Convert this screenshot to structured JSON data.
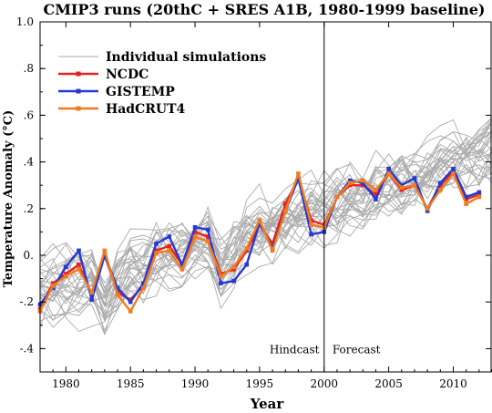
{
  "chart_data": {
    "type": "line",
    "title": "CMIP3 runs (20thC + SRES A1B, 1980-1999 baseline)",
    "xlabel": "Year",
    "ylabel": "Temperature Anomaly (°C)",
    "xlim": [
      1978,
      2013
    ],
    "ylim": [
      -0.5,
      1.0
    ],
    "x_ticks": [
      "1980",
      "1985",
      "1990",
      "1995",
      "2000",
      "2005",
      "2010"
    ],
    "x_tick_values": [
      1980,
      1985,
      1990,
      1995,
      2000,
      2005,
      2010
    ],
    "y_ticks": [
      "-.4",
      "-.2",
      "0.",
      ".2",
      ".4",
      ".6",
      ".8",
      "1.0"
    ],
    "y_tick_values": [
      -0.4,
      -0.2,
      0.0,
      0.2,
      0.4,
      0.6,
      0.8,
      1.0
    ],
    "legend_position": "top-left",
    "grid": false,
    "divider_year": 2000,
    "annotations": [
      {
        "text": "Hindcast",
        "x": 1997.7,
        "y": -0.42
      },
      {
        "text": "Forecast",
        "x": 2002.5,
        "y": -0.42
      }
    ],
    "years": [
      1978,
      1979,
      1980,
      1981,
      1982,
      1983,
      1984,
      1985,
      1986,
      1987,
      1988,
      1989,
      1990,
      1991,
      1992,
      1993,
      1994,
      1995,
      1996,
      1997,
      1998,
      1999,
      2000,
      2001,
      2002,
      2003,
      2004,
      2005,
      2006,
      2007,
      2008,
      2009,
      2010,
      2011,
      2012
    ],
    "ensemble": {
      "name": "Individual simulations",
      "color": "#aaaaaa",
      "count": 30,
      "start_year": 1978,
      "end_year": 2013
    },
    "series": [
      {
        "name": "NCDC",
        "color": "#e8231e",
        "values": [
          -0.23,
          -0.12,
          -0.08,
          -0.04,
          -0.17,
          0.0,
          -0.16,
          -0.19,
          -0.13,
          0.02,
          0.04,
          -0.04,
          0.1,
          0.08,
          -0.08,
          -0.06,
          0.02,
          0.13,
          0.05,
          0.22,
          0.33,
          0.15,
          0.13,
          0.25,
          0.3,
          0.3,
          0.26,
          0.35,
          0.28,
          0.3,
          0.2,
          0.3,
          0.36,
          0.24,
          0.26
        ]
      },
      {
        "name": "GISTEMP",
        "color": "#2338d6",
        "values": [
          -0.21,
          -0.14,
          -0.05,
          0.02,
          -0.19,
          0.0,
          -0.14,
          -0.2,
          -0.12,
          0.05,
          0.08,
          -0.04,
          0.12,
          0.11,
          -0.12,
          -0.11,
          -0.04,
          0.14,
          0.03,
          0.19,
          0.33,
          0.09,
          0.1,
          0.25,
          0.32,
          0.31,
          0.24,
          0.37,
          0.3,
          0.33,
          0.19,
          0.31,
          0.37,
          0.25,
          0.27
        ]
      },
      {
        "name": "HadCRUT4",
        "color": "#f07c1e",
        "values": [
          -0.24,
          -0.13,
          -0.09,
          -0.06,
          -0.16,
          0.02,
          -0.17,
          -0.24,
          -0.14,
          0.01,
          0.02,
          -0.06,
          0.08,
          0.06,
          -0.09,
          -0.05,
          0.03,
          0.15,
          0.02,
          0.19,
          0.35,
          0.13,
          0.12,
          0.25,
          0.31,
          0.32,
          0.28,
          0.35,
          0.29,
          0.3,
          0.2,
          0.28,
          0.35,
          0.22,
          0.25
        ]
      }
    ]
  }
}
